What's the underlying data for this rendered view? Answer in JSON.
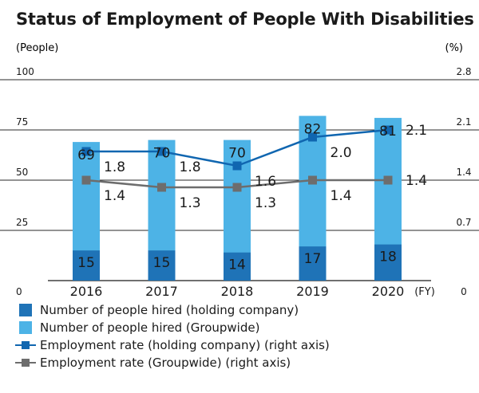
{
  "chart_data": {
    "type": "bar+line",
    "title": "Status of Employment of People With Disabilities",
    "left_axis_unit": "(People)",
    "right_axis_unit": "(%)",
    "x_unit": "(FY)",
    "categories": [
      "2016",
      "2017",
      "2018",
      "2019",
      "2020"
    ],
    "left_ticks": [
      "0",
      "25",
      "50",
      "75",
      "100"
    ],
    "right_ticks": [
      "0",
      "0.7",
      "1.4",
      "2.1",
      "2.8"
    ],
    "ylim_left": [
      0,
      100
    ],
    "ylim_right": [
      0,
      2.8
    ],
    "bars": [
      {
        "name": "Number of people hired (holding company)",
        "color": "#1f73b7",
        "values": [
          15,
          15,
          14,
          17,
          18
        ]
      },
      {
        "name": "Number of people hired (Groupwide)",
        "color": "#4db3e6",
        "values": [
          69,
          70,
          70,
          82,
          81
        ]
      }
    ],
    "lines": [
      {
        "name": "Employment rate (holding company) (right axis)",
        "color": "#1066b0",
        "values": [
          1.8,
          1.8,
          1.6,
          2.0,
          2.1
        ],
        "labels": [
          "1.8",
          "1.8",
          "1.6",
          "2.0",
          "2.1"
        ]
      },
      {
        "name": "Employment rate (Groupwide) (right axis)",
        "color": "#6d6d6d",
        "values": [
          1.4,
          1.3,
          1.3,
          1.4,
          1.4
        ],
        "labels": [
          "1.4",
          "1.3",
          "1.3",
          "1.4",
          "1.4"
        ]
      }
    ]
  },
  "legend": [
    {
      "label": "Number of people hired (holding company)",
      "kind": "box",
      "color": "#1f73b7"
    },
    {
      "label": "Number of people hired (Groupwide)",
      "kind": "box",
      "color": "#4db3e6"
    },
    {
      "label": "Employment rate (holding company) (right axis)",
      "kind": "line",
      "color": "#1066b0"
    },
    {
      "label": "Employment rate (Groupwide) (right axis)",
      "kind": "line",
      "color": "#6d6d6d"
    }
  ]
}
